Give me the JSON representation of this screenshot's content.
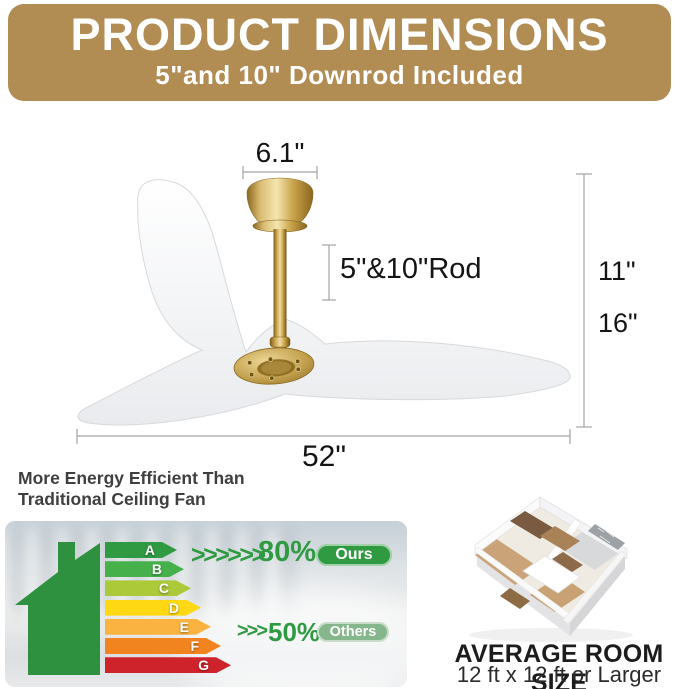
{
  "header": {
    "title": "PRODUCT DIMENSIONS",
    "subtitle": "5\"and 10\" Downrod Included"
  },
  "dimensions": {
    "canopy_width": "6.1\"",
    "rod": "5\"&10\"Rod",
    "height_upper": "11\"",
    "height_lower": "16\"",
    "blade_span": "52\""
  },
  "efficiency": {
    "heading_line1": "More Energy Efficient Than",
    "heading_line2": "Traditional Ceiling Fan",
    "icon": "green-house-icon",
    "ours": {
      "chevrons": ">>>>>>",
      "value": "80%",
      "badge": "Ours"
    },
    "others": {
      "chevrons": ">>>",
      "value": "50%",
      "badge": "Others"
    },
    "chart_data": {
      "type": "bar",
      "categories": [
        "A",
        "B",
        "C",
        "D",
        "E",
        "F",
        "G"
      ],
      "values": [
        72,
        79,
        86,
        96,
        106,
        116,
        126
      ],
      "colors": [
        "#2f9a41",
        "#46b14a",
        "#acc93a",
        "#fdd813",
        "#fab340",
        "#f28420",
        "#cf232b"
      ],
      "annotations": [
        "Ours 80%",
        "Others 50%"
      ],
      "legend_position": "right"
    }
  },
  "room": {
    "title": "AVERAGE ROOM SIZE",
    "subtitle": "12 ft x 12 ft or Larger",
    "icon": "room-floorplan-illustration"
  },
  "colors": {
    "banner": "#b18c53",
    "accent_green": "#2f9a41",
    "others_badge": "#86b68b"
  }
}
